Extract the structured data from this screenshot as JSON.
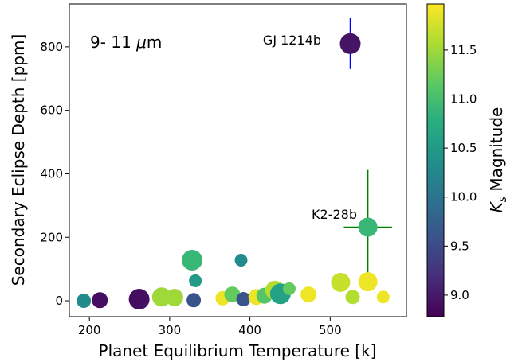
{
  "chart_data": {
    "type": "scatter",
    "title": "",
    "xlabel": "Planet Equilibrium Temperature [k]",
    "ylabel": "Secondary Eclipse Depth [ppm]",
    "xlim": [
      175,
      595
    ],
    "ylim": [
      -50,
      935
    ],
    "xticks": [
      200,
      300,
      400,
      500
    ],
    "yticks": [
      0,
      200,
      400,
      600,
      800
    ],
    "grid": false,
    "annotation": {
      "prefix": "9- 11 ",
      "unit_symbol": "μ",
      "suffix": "m"
    },
    "colorbar": {
      "label_base": "K",
      "label_sub": "s",
      "label_rest": " Magnitude",
      "range": [
        8.78,
        11.97
      ],
      "ticks": [
        9.0,
        9.5,
        10.0,
        10.5,
        11.0,
        11.5
      ],
      "tick_labels": [
        "9.0",
        "9.5",
        "10.0",
        "10.5",
        "11.0",
        "11.5"
      ],
      "colormap": "viridis"
    },
    "labeled_points": [
      {
        "label": "GJ 1214b",
        "label_color": "#000000",
        "x": 525,
        "y": 810,
        "yerr": 80,
        "error_color": "#0000ff"
      },
      {
        "label": "K2-28b",
        "label_color": "#ff0000",
        "x": 547,
        "y": 232,
        "xerr": 30,
        "yerr_low": 175,
        "yerr_high": 180,
        "error_color": "#008000"
      }
    ],
    "points": [
      {
        "x": 193,
        "y": 0,
        "kmag": 10.3,
        "size": 9
      },
      {
        "x": 213,
        "y": 2,
        "kmag": 8.9,
        "size": 10
      },
      {
        "x": 262,
        "y": 5,
        "kmag": 8.9,
        "size": 13
      },
      {
        "x": 290,
        "y": 12,
        "kmag": 11.5,
        "size": 12
      },
      {
        "x": 306,
        "y": 10,
        "kmag": 11.5,
        "size": 11
      },
      {
        "x": 330,
        "y": 2,
        "kmag": 9.6,
        "size": 9
      },
      {
        "x": 328,
        "y": 128,
        "kmag": 10.9,
        "size": 13
      },
      {
        "x": 332,
        "y": 63,
        "kmag": 10.5,
        "size": 8
      },
      {
        "x": 366,
        "y": 8,
        "kmag": 11.9,
        "size": 9
      },
      {
        "x": 378,
        "y": 20,
        "kmag": 11.2,
        "size": 10
      },
      {
        "x": 389,
        "y": 128,
        "kmag": 10.3,
        "size": 8
      },
      {
        "x": 392,
        "y": 5,
        "kmag": 9.6,
        "size": 9
      },
      {
        "x": 408,
        "y": 12,
        "kmag": 11.9,
        "size": 10
      },
      {
        "x": 418,
        "y": 16,
        "kmag": 11.1,
        "size": 10
      },
      {
        "x": 431,
        "y": 33,
        "kmag": 11.6,
        "size": 12
      },
      {
        "x": 438,
        "y": 22,
        "kmag": 10.6,
        "size": 13
      },
      {
        "x": 449,
        "y": 38,
        "kmag": 11.2,
        "size": 8
      },
      {
        "x": 473,
        "y": 20,
        "kmag": 11.9,
        "size": 10
      },
      {
        "x": 513,
        "y": 58,
        "kmag": 11.7,
        "size": 12
      },
      {
        "x": 528,
        "y": 12,
        "kmag": 11.6,
        "size": 9
      },
      {
        "x": 547,
        "y": 60,
        "kmag": 11.9,
        "size": 12
      },
      {
        "x": 566,
        "y": 12,
        "kmag": 11.9,
        "size": 8
      },
      {
        "x": 525,
        "y": 810,
        "kmag": 8.95,
        "size": 13
      },
      {
        "x": 547,
        "y": 232,
        "kmag": 10.9,
        "size": 12
      }
    ]
  }
}
